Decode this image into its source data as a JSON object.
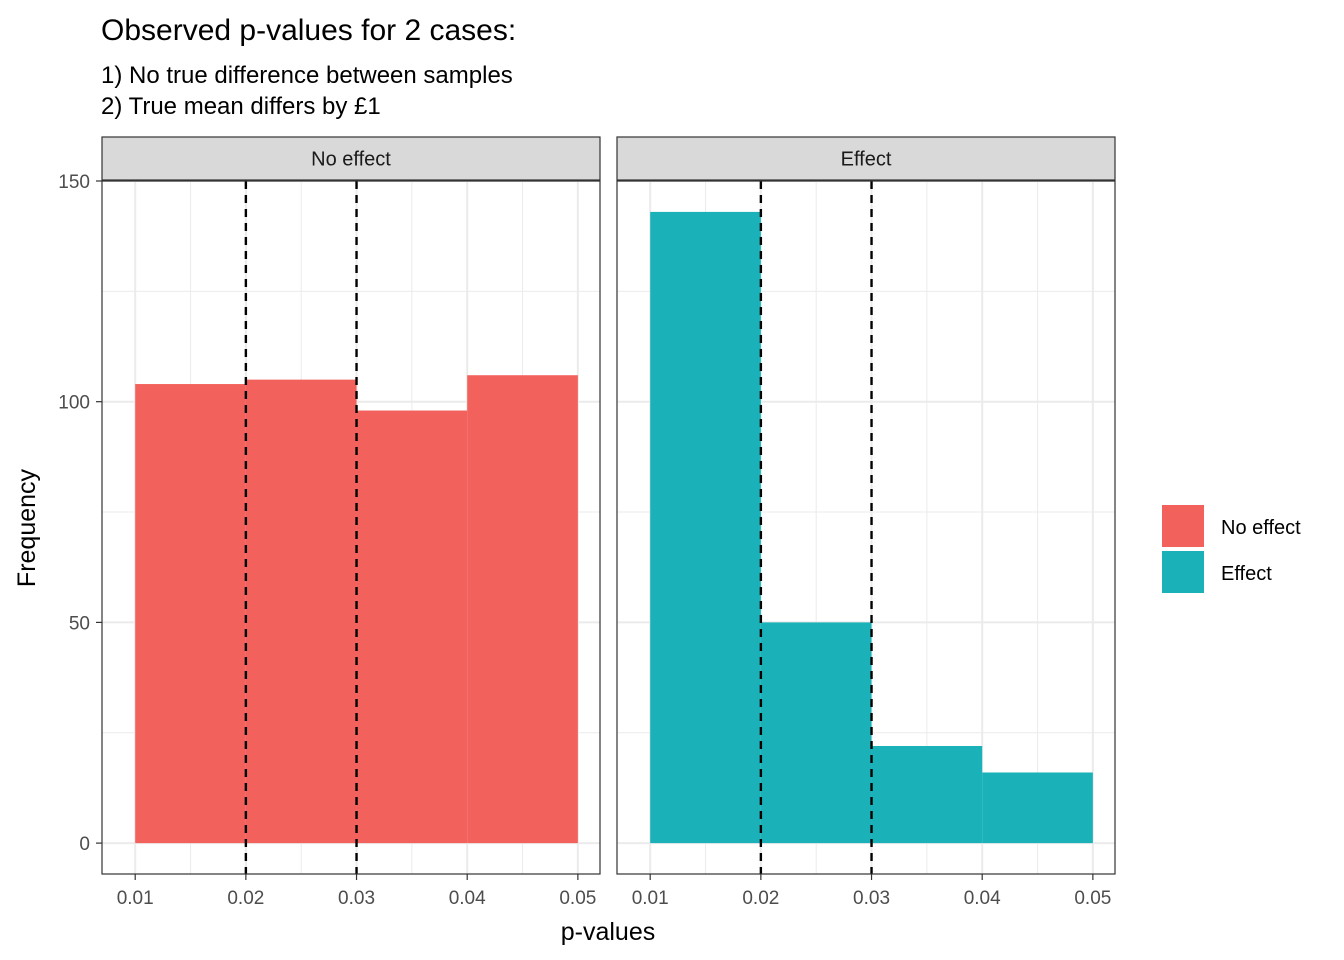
{
  "chart_data": {
    "type": "bar",
    "title": "Observed p-values for 2 cases:",
    "subtitle_lines": [
      "1) No true difference between samples",
      "2) True mean differs by £1"
    ],
    "xlabel": "p-values",
    "ylabel": "Frequency",
    "xlim": [
      0.007,
      0.052
    ],
    "ylim": [
      -7,
      150
    ],
    "x_ticks": [
      0.01,
      0.02,
      0.03,
      0.04,
      0.05
    ],
    "x_tick_labels": [
      "0.01",
      "0.02",
      "0.03",
      "0.04",
      "0.05"
    ],
    "y_ticks": [
      0,
      50,
      100,
      150
    ],
    "y_tick_labels": [
      "0",
      "50",
      "100",
      "150"
    ],
    "bin_edges": [
      0.01,
      0.02,
      0.03,
      0.04,
      0.05
    ],
    "reference_lines_x": [
      0.02,
      0.03
    ],
    "grid": true,
    "legend_position": "right",
    "panels": [
      {
        "label": "No effect",
        "series": "No effect",
        "values": [
          104,
          105,
          98,
          106
        ]
      },
      {
        "label": "Effect",
        "series": "Effect",
        "values": [
          143,
          50,
          22,
          16
        ]
      }
    ],
    "legend": [
      {
        "name": "No effect",
        "color": "#F3615C"
      },
      {
        "name": "Effect",
        "color": "#1AB2B8"
      }
    ]
  }
}
